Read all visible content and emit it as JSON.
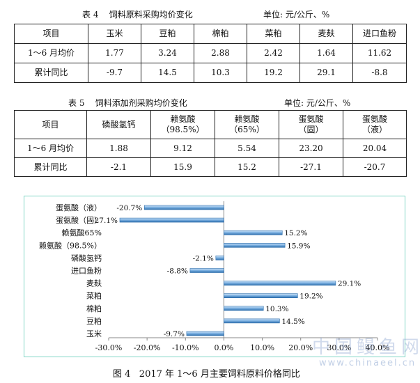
{
  "table4": {
    "title": "表 4    饲料原料采购均价变化",
    "unit": "单位: 元/公斤、%",
    "headers": [
      "项目",
      "玉米",
      "豆粕",
      "棉粕",
      "菜粕",
      "麦麸",
      "进口鱼粉"
    ],
    "rows": [
      [
        "1～6 月均价",
        "1.77",
        "3.24",
        "2.88",
        "2.42",
        "1.64",
        "11.62"
      ],
      [
        "累计同比",
        "-9.7",
        "14.5",
        "10.3",
        "19.2",
        "29.1",
        "-8.8"
      ]
    ]
  },
  "table5": {
    "title": "表 5    饲料添加剂采购均价变化",
    "unit": "单位: 元/公斤、%",
    "headers": [
      [
        "项目"
      ],
      [
        "磷酸氢钙"
      ],
      [
        "赖氨酸",
        "（98.5%）"
      ],
      [
        "赖氨酸",
        "（65%）"
      ],
      [
        "蛋氨酸",
        "（固）"
      ],
      [
        "蛋氨酸",
        "（液）"
      ]
    ],
    "rows": [
      [
        "1～6 月均价",
        "1.88",
        "9.12",
        "5.54",
        "23.20",
        "20.04"
      ],
      [
        "累计同比",
        "-2.1",
        "15.9",
        "15.2",
        "-27.1",
        "-20.7"
      ]
    ]
  },
  "chart_data": {
    "type": "bar",
    "orientation": "horizontal",
    "categories": [
      "蛋氨酸（液）",
      "蛋氨酸（固）",
      "赖氨酸65%",
      "赖氨酸（98.5%）",
      "磷酸氢钙",
      "进口鱼粉",
      "麦麸",
      "菜粕",
      "棉粕",
      "豆粕",
      "玉米"
    ],
    "values": [
      -20.7,
      -27.1,
      15.2,
      15.9,
      -2.1,
      -8.8,
      29.1,
      19.2,
      10.3,
      14.5,
      -9.7
    ],
    "data_labels": [
      "-20.7%",
      "-27.1%",
      "15.2%",
      "15.9%",
      "-2.1%",
      "-8.8%",
      "29.1%",
      "19.2%",
      "10.3%",
      "14.5%",
      "-9.7%"
    ],
    "xlim": [
      -30,
      40
    ],
    "x_ticks": [
      "-30.0%",
      "-20.0%",
      "-10.0%",
      "0.0%",
      "10.0%",
      "20.0%",
      "30.0%",
      "40.0%"
    ],
    "grid": false,
    "colors": {
      "bar_fill": "#5b9bd5",
      "bar_dark": "#2e6fad",
      "bar_light": "#cfe3f6",
      "border": "#7fd6c5"
    }
  },
  "figure_caption": "图 4   2017 年 1～6 月主要饲料原料价格同比",
  "watermark": {
    "text": "中国鳗鱼网",
    "url": "www.chinaeel.cn"
  }
}
